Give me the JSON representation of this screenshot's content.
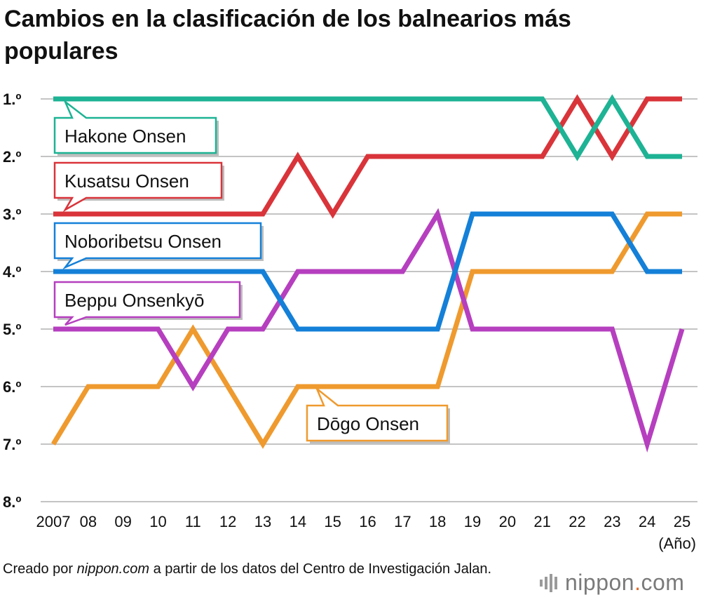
{
  "title": "Cambios en la clasificación de los balnearios más populares",
  "chart_data": {
    "type": "line",
    "title": "Cambios en la clasificación de los balnearios más populares",
    "xlabel": "(Año)",
    "ylabel": "",
    "x": [
      2007,
      2008,
      2009,
      2010,
      2011,
      2012,
      2013,
      2014,
      2015,
      2016,
      2017,
      2018,
      2019,
      2020,
      2021,
      2022,
      2023,
      2024,
      2025
    ],
    "x_tick_labels": [
      "2007",
      "08",
      "09",
      "10",
      "11",
      "12",
      "13",
      "14",
      "15",
      "16",
      "17",
      "18",
      "19",
      "20",
      "21",
      "22",
      "23",
      "24",
      "25"
    ],
    "y_tick_labels": [
      "1.º",
      "2.º",
      "3.º",
      "4.º",
      "5.º",
      "6.º",
      "7.º",
      "8.º"
    ],
    "ylim": [
      1,
      8
    ],
    "y_inverted": true,
    "grid": true,
    "series": [
      {
        "name": "Hakone Onsen",
        "color": "#1db394",
        "values": [
          1,
          1,
          1,
          1,
          1,
          1,
          1,
          1,
          1,
          1,
          1,
          1,
          1,
          1,
          1,
          2,
          1,
          2,
          2
        ]
      },
      {
        "name": "Kusatsu Onsen",
        "color": "#d9343a",
        "values": [
          3,
          3,
          3,
          3,
          3,
          3,
          3,
          2,
          3,
          2,
          2,
          2,
          2,
          2,
          2,
          1,
          2,
          1,
          1
        ]
      },
      {
        "name": "Noboribetsu Onsen",
        "color": "#1480d8",
        "values": [
          4,
          4,
          4,
          4,
          4,
          4,
          4,
          5,
          5,
          5,
          5,
          5,
          3,
          3,
          3,
          3,
          3,
          4,
          4
        ]
      },
      {
        "name": "Beppu Onsenkyō",
        "color": "#b63fbf",
        "values": [
          5,
          5,
          5,
          5,
          6,
          5,
          5,
          4,
          4,
          4,
          4,
          3,
          5,
          5,
          5,
          5,
          5,
          7,
          5
        ]
      },
      {
        "name": "Dōgo Onsen",
        "color": "#ef9a2e",
        "values": [
          7,
          6,
          6,
          6,
          5,
          6,
          7,
          6,
          6,
          6,
          6,
          6,
          4,
          4,
          4,
          4,
          4,
          3,
          3
        ]
      }
    ]
  },
  "footer": {
    "prefix": "Creado por ",
    "source": "nippon.com",
    "suffix": " a partir de los datos del Centro de Investigación Jalan."
  },
  "logo": {
    "name": "nippon",
    "dot": ".",
    "tld": "com",
    "color": "#7a7a7a",
    "dot_color": "#e06a2a"
  }
}
